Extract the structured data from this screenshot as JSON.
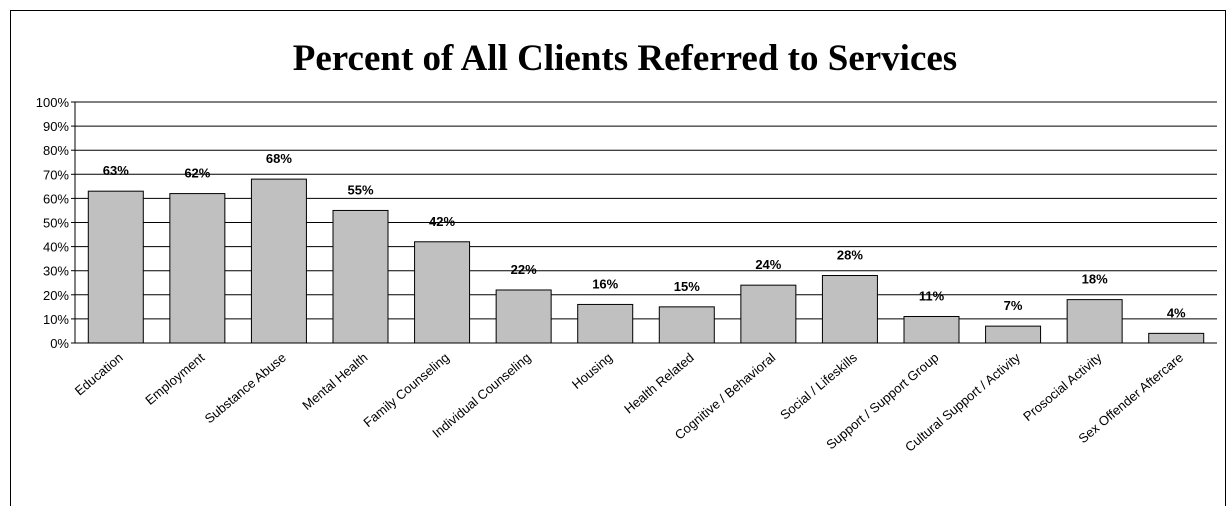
{
  "chart_data": {
    "type": "bar",
    "title": "Percent of All Clients Referred to Services",
    "categories": [
      "Education",
      "Employment",
      "Substance Abuse",
      "Mental Health",
      "Family Counseling",
      "Individual Counseling",
      "Housing",
      "Health Related",
      "Cognitive / Behavioral",
      "Social / Lifeskills",
      "Support / Support Group",
      "Cultural Support / Activity",
      "Prosocial Activity",
      "Sex Offender Aftercare"
    ],
    "values": [
      63,
      62,
      68,
      55,
      42,
      22,
      16,
      15,
      24,
      28,
      11,
      7,
      18,
      4
    ],
    "value_labels": [
      "63%",
      "62%",
      "68%",
      "55%",
      "42%",
      "22%",
      "16%",
      "15%",
      "24%",
      "28%",
      "11%",
      "7%",
      "18%",
      "4%"
    ],
    "color": "#c0c0c0",
    "ylim": [
      0,
      100
    ],
    "yticks": [
      {
        "value": 0,
        "label": "0%"
      },
      {
        "value": 10,
        "label": "10%"
      },
      {
        "value": 20,
        "label": "20%"
      },
      {
        "value": 30,
        "label": "30%"
      },
      {
        "value": 40,
        "label": "40%"
      },
      {
        "value": 50,
        "label": "50%"
      },
      {
        "value": 60,
        "label": "60%"
      },
      {
        "value": 70,
        "label": "70%"
      },
      {
        "value": 80,
        "label": "80%"
      },
      {
        "value": 90,
        "label": "90%"
      },
      {
        "value": 100,
        "label": "100%"
      }
    ],
    "grid": true
  }
}
